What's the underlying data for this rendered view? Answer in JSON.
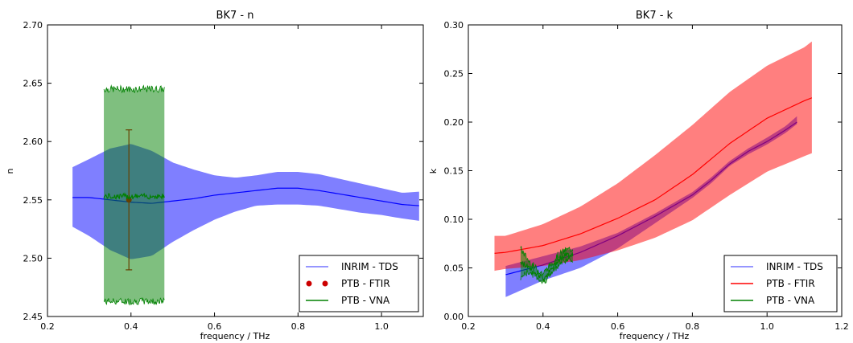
{
  "chart_data": [
    {
      "type": "line",
      "title": "BK7 - n",
      "xlabel": "frequency / THz",
      "ylabel": "n",
      "xlim": [
        0.2,
        1.1
      ],
      "ylim": [
        2.45,
        2.7
      ],
      "xticks": [
        0.2,
        0.4,
        0.6,
        0.8,
        1.0
      ],
      "xtick_labels": [
        "0.2",
        "0.4",
        "0.6",
        "0.8",
        "1.0"
      ],
      "yticks": [
        2.45,
        2.5,
        2.55,
        2.6,
        2.65,
        2.7
      ],
      "ytick_labels": [
        "2.45",
        "2.50",
        "2.55",
        "2.60",
        "2.65",
        "2.70"
      ],
      "grid": false,
      "legend_position": "lower-right",
      "series": [
        {
          "name": "INRIM - TDS",
          "kind": "line_band",
          "color": "#0000ff",
          "x": [
            0.26,
            0.3,
            0.35,
            0.4,
            0.45,
            0.5,
            0.55,
            0.6,
            0.65,
            0.7,
            0.75,
            0.8,
            0.85,
            0.9,
            0.95,
            1.0,
            1.05,
            1.09
          ],
          "y": [
            2.552,
            2.552,
            2.55,
            2.548,
            2.547,
            2.549,
            2.551,
            2.554,
            2.556,
            2.558,
            2.56,
            2.56,
            2.558,
            2.555,
            2.552,
            2.549,
            2.546,
            2.545
          ],
          "y_upper": [
            2.578,
            2.585,
            2.594,
            2.598,
            2.592,
            2.582,
            2.576,
            2.571,
            2.569,
            2.571,
            2.574,
            2.574,
            2.572,
            2.568,
            2.564,
            2.56,
            2.556,
            2.557
          ],
          "y_lower": [
            2.527,
            2.519,
            2.507,
            2.499,
            2.502,
            2.514,
            2.524,
            2.533,
            2.54,
            2.545,
            2.546,
            2.546,
            2.545,
            2.542,
            2.539,
            2.537,
            2.534,
            2.532
          ]
        },
        {
          "name": "PTB - FTIR",
          "kind": "errorbar_point",
          "color": "#cc0000",
          "x": [
            0.395
          ],
          "y": [
            2.55
          ],
          "y_err_lower": [
            0.06
          ],
          "y_err_upper": [
            0.06
          ]
        },
        {
          "name": "PTB - VNA",
          "kind": "noisy_line_band",
          "color": "#008000",
          "x_range": [
            0.335,
            0.48
          ],
          "y_center": 2.553,
          "y_upper": 2.645,
          "y_lower": 2.463
        }
      ]
    },
    {
      "type": "line",
      "title": "BK7 - k",
      "xlabel": "frequency / THz",
      "ylabel": "k",
      "xlim": [
        0.2,
        1.2
      ],
      "ylim": [
        0.0,
        0.3
      ],
      "xticks": [
        0.2,
        0.4,
        0.6,
        0.8,
        1.0,
        1.2
      ],
      "xtick_labels": [
        "0.2",
        "0.4",
        "0.6",
        "0.8",
        "1.0",
        "1.2"
      ],
      "yticks": [
        0.0,
        0.05,
        0.1,
        0.15,
        0.2,
        0.25,
        0.3
      ],
      "ytick_labels": [
        "0.00",
        "0.05",
        "0.10",
        "0.15",
        "0.20",
        "0.25",
        "0.30"
      ],
      "grid": false,
      "legend_position": "lower-right",
      "series": [
        {
          "name": "INRIM - TDS",
          "kind": "line_band",
          "color": "#0000ff",
          "x": [
            0.3,
            0.4,
            0.5,
            0.6,
            0.7,
            0.8,
            0.85,
            0.9,
            0.95,
            1.0,
            1.05,
            1.08
          ],
          "y": [
            0.043,
            0.053,
            0.066,
            0.083,
            0.103,
            0.125,
            0.14,
            0.157,
            0.17,
            0.18,
            0.192,
            0.2
          ],
          "y_upper": [
            0.052,
            0.062,
            0.072,
            0.086,
            0.106,
            0.128,
            0.143,
            0.16,
            0.173,
            0.184,
            0.196,
            0.206
          ],
          "y_lower": [
            0.02,
            0.037,
            0.05,
            0.07,
            0.096,
            0.122,
            0.137,
            0.155,
            0.167,
            0.177,
            0.189,
            0.198
          ]
        },
        {
          "name": "PTB - FTIR",
          "kind": "line_band",
          "color": "#ff0000",
          "x": [
            0.27,
            0.3,
            0.4,
            0.5,
            0.6,
            0.7,
            0.8,
            0.9,
            1.0,
            1.1,
            1.12
          ],
          "y": [
            0.065,
            0.066,
            0.073,
            0.085,
            0.101,
            0.12,
            0.146,
            0.178,
            0.204,
            0.222,
            0.225
          ],
          "y_upper": [
            0.083,
            0.083,
            0.095,
            0.113,
            0.137,
            0.166,
            0.197,
            0.231,
            0.258,
            0.277,
            0.283
          ],
          "y_lower": [
            0.047,
            0.049,
            0.052,
            0.058,
            0.068,
            0.081,
            0.099,
            0.125,
            0.149,
            0.165,
            0.168
          ]
        },
        {
          "name": "PTB - VNA",
          "kind": "noisy_line_band",
          "color": "#008000",
          "x": [
            0.34,
            0.36,
            0.38,
            0.4,
            0.42,
            0.44,
            0.46,
            0.48
          ],
          "y": [
            0.055,
            0.052,
            0.046,
            0.039,
            0.047,
            0.058,
            0.063,
            0.064
          ],
          "y_upper": [
            0.07,
            0.058,
            0.05,
            0.044,
            0.053,
            0.063,
            0.068,
            0.07
          ],
          "y_lower": [
            0.04,
            0.046,
            0.042,
            0.035,
            0.043,
            0.053,
            0.058,
            0.059
          ]
        }
      ]
    }
  ]
}
